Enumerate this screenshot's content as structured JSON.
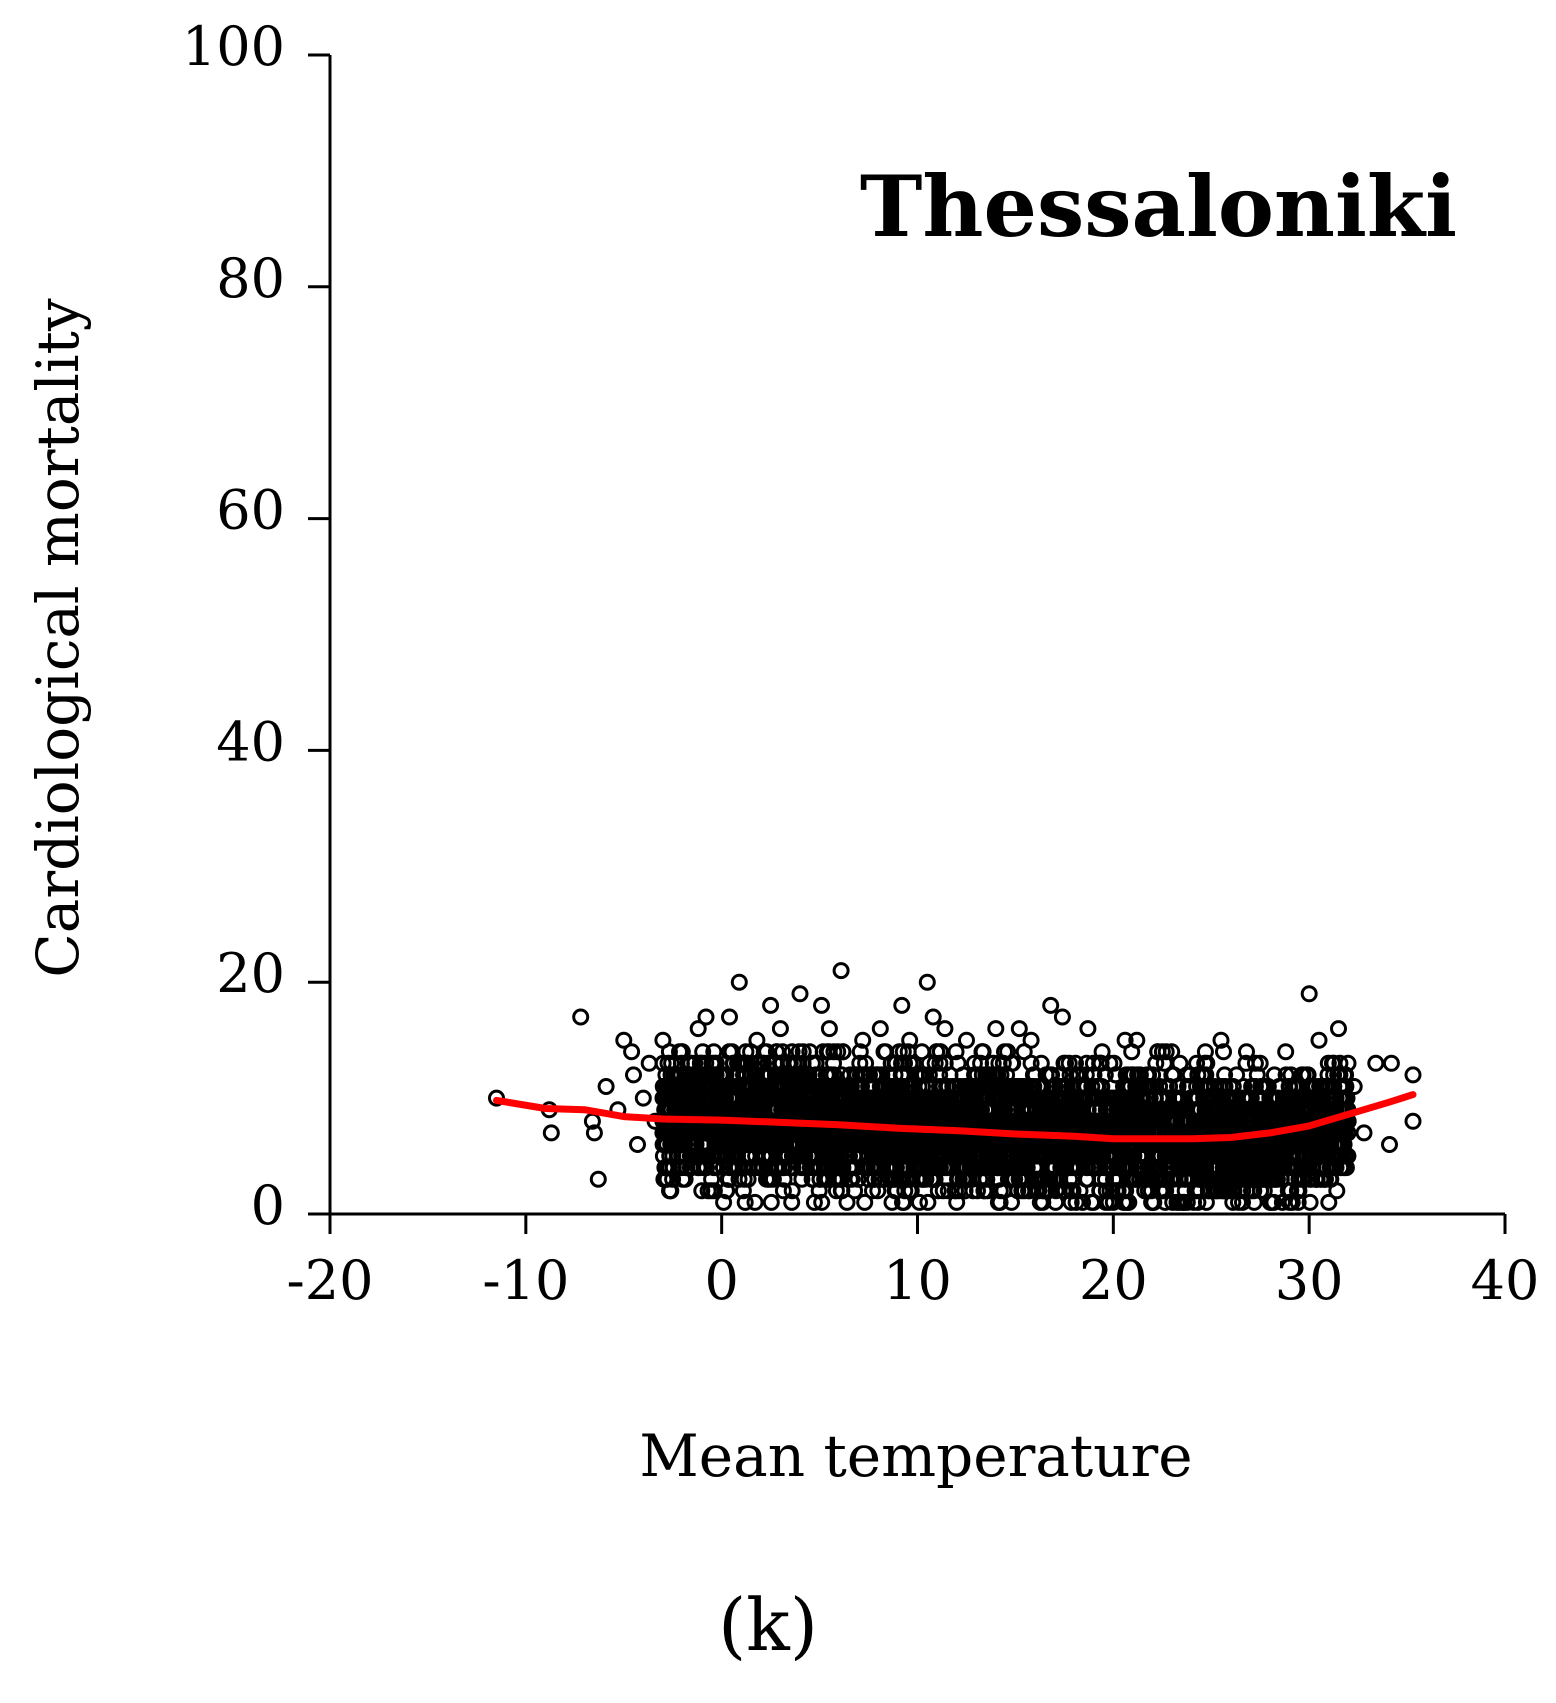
{
  "chart_data": {
    "type": "scatter",
    "title": "Thessaloniki",
    "xlabel": "Mean temperature",
    "ylabel": "Cardiological mortality",
    "panel_label": "(k)",
    "xlim": [
      -20,
      40
    ],
    "ylim": [
      0,
      100
    ],
    "x_ticks": [
      "-20",
      "-10",
      "0",
      "10",
      "20",
      "30",
      "40"
    ],
    "y_ticks": [
      "0",
      "20",
      "40",
      "60",
      "80",
      "100"
    ],
    "grid": false,
    "legend": "none",
    "colors": {
      "points": "#000000",
      "smooth_line": "#ff0000"
    },
    "series": [
      {
        "marker": "open-circle",
        "points": [
          [
            -11.5,
            10
          ],
          [
            -8.8,
            9
          ],
          [
            -8.7,
            7
          ],
          [
            -7.2,
            17
          ],
          [
            -6.5,
            7
          ],
          [
            -6.3,
            3
          ],
          [
            -6.6,
            8
          ],
          [
            -5.9,
            11
          ],
          [
            -5.3,
            9
          ],
          [
            -5.0,
            15
          ],
          [
            -4.6,
            14
          ],
          [
            -4.5,
            12
          ],
          [
            -4.3,
            6
          ],
          [
            -4.0,
            10
          ],
          [
            -3.7,
            13
          ],
          [
            -3.4,
            8
          ],
          [
            -3.0,
            15
          ],
          [
            -2.6,
            2
          ],
          [
            -2.3,
            12
          ],
          [
            -1.8,
            4
          ],
          [
            -1.2,
            16
          ],
          [
            -0.8,
            17
          ],
          [
            -0.4,
            14
          ],
          [
            0.1,
            1
          ],
          [
            0.4,
            17
          ],
          [
            0.9,
            20
          ],
          [
            1.2,
            1
          ],
          [
            1.8,
            15
          ],
          [
            2.5,
            18
          ],
          [
            3.0,
            16
          ],
          [
            3.6,
            2
          ],
          [
            4.0,
            19
          ],
          [
            4.5,
            14
          ],
          [
            5.1,
            18
          ],
          [
            5.5,
            16
          ],
          [
            6.1,
            21
          ],
          [
            6.4,
            1
          ],
          [
            7.2,
            15
          ],
          [
            8.1,
            16
          ],
          [
            8.7,
            1
          ],
          [
            9.2,
            18
          ],
          [
            9.6,
            15
          ],
          [
            10.1,
            1
          ],
          [
            10.5,
            20
          ],
          [
            10.8,
            17
          ],
          [
            11.4,
            16
          ],
          [
            12.0,
            1
          ],
          [
            12.5,
            15
          ],
          [
            13.3,
            14
          ],
          [
            14.0,
            16
          ],
          [
            14.8,
            1
          ],
          [
            15.2,
            16
          ],
          [
            15.8,
            15
          ],
          [
            16.4,
            1
          ],
          [
            16.8,
            18
          ],
          [
            17.4,
            17
          ],
          [
            18.1,
            1
          ],
          [
            18.7,
            16
          ],
          [
            19.3,
            13
          ],
          [
            20.0,
            1
          ],
          [
            20.6,
            15
          ],
          [
            21.2,
            15
          ],
          [
            22.0,
            1
          ],
          [
            22.7,
            14
          ],
          [
            23.4,
            13
          ],
          [
            24.1,
            1
          ],
          [
            24.7,
            14
          ],
          [
            25.5,
            15
          ],
          [
            26.1,
            1
          ],
          [
            26.8,
            14
          ],
          [
            27.5,
            13
          ],
          [
            28.2,
            1
          ],
          [
            28.8,
            14
          ],
          [
            29.4,
            2
          ],
          [
            30.0,
            19
          ],
          [
            30.5,
            15
          ],
          [
            31.0,
            1
          ],
          [
            31.5,
            16
          ],
          [
            31.9,
            5
          ],
          [
            32.3,
            11
          ],
          [
            32.8,
            7
          ],
          [
            33.4,
            13
          ],
          [
            34.1,
            6
          ],
          [
            34.2,
            13
          ],
          [
            35.3,
            12
          ],
          [
            35.3,
            8
          ]
        ]
      }
    ],
    "smooth_line": {
      "x": [
        -11.5,
        -9,
        -7,
        -5,
        -3,
        0,
        3,
        6,
        9,
        12,
        15,
        18,
        20,
        22,
        24,
        26,
        28,
        30,
        32,
        34,
        35.3
      ],
      "y": [
        9.8,
        9.1,
        9.0,
        8.4,
        8.2,
        8.1,
        7.9,
        7.7,
        7.4,
        7.2,
        6.9,
        6.7,
        6.5,
        6.5,
        6.5,
        6.6,
        7.0,
        7.6,
        8.6,
        9.6,
        10.3
      ]
    }
  }
}
